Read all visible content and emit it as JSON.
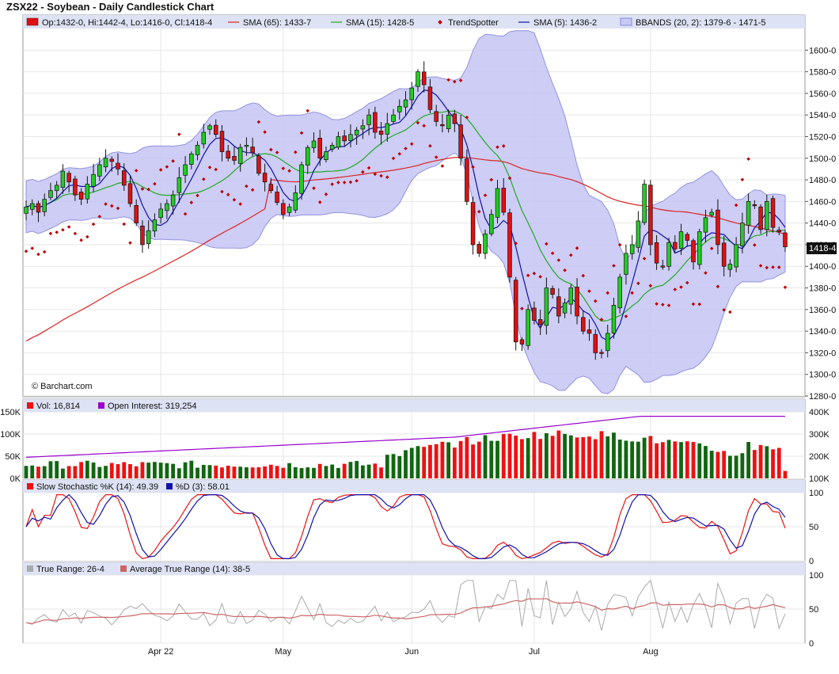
{
  "title": "ZSX22 - Soybean - Daily Candlestick Chart",
  "watermark": "© Barchart.com",
  "colors": {
    "up": "#22cc22",
    "down": "#dd1111",
    "sma65": "#dd2222",
    "sma15": "#22aa22",
    "sma5": "#1111aa",
    "trendspotter": "#bb0000",
    "bbands_fill": "#c8c8f4",
    "bbands_line": "#8888dd",
    "vol_up": "#116611",
    "vol_down": "#ee1111",
    "open_interest": "#9900cc",
    "stoch_k": "#ee1111",
    "stoch_d": "#1111aa",
    "true_range": "#aaaaaa",
    "atr": "#cc6666",
    "legend_bg": "#dde2f4"
  },
  "legends": {
    "price": {
      "ohlc": "Op:1432-0, Hi:1442-4, Lo:1416-0, Cl:1418-4",
      "sma65": "SMA (65): 1433-7",
      "sma15": "SMA (15): 1428-5",
      "trendspotter": "TrendSpotter",
      "sma5": "SMA (5): 1436-2",
      "bbands": "BBANDS (20, 2): 1379-6 - 1471-5"
    },
    "volume": {
      "vol": "Vol: 16,814",
      "oi": "Open Interest: 319,254"
    },
    "stoch": {
      "k": "Slow Stochastic %K (14): 49.39",
      "d": "%D (3): 58.01"
    },
    "tr": {
      "tr": "True Range: 26-4",
      "atr": "Average True Range (14): 38-5"
    }
  },
  "last_price_label": "1418-4",
  "chart_data": [
    {
      "type": "candlestick",
      "panel": "price",
      "x_labels": [
        {
          "index": 22,
          "label": "Apr 22"
        },
        {
          "index": 42,
          "label": "May"
        },
        {
          "index": 63,
          "label": "Jun"
        },
        {
          "index": 83,
          "label": "Jul"
        },
        {
          "index": 102,
          "label": "Aug"
        }
      ],
      "ylim": [
        1280,
        1620
      ],
      "y_ticks": [
        {
          "v": 1600,
          "label": "1600-0"
        },
        {
          "v": 1580,
          "label": "1580-0"
        },
        {
          "v": 1560,
          "label": "1560-0"
        },
        {
          "v": 1540,
          "label": "1540-0"
        },
        {
          "v": 1520,
          "label": "1520-0"
        },
        {
          "v": 1500,
          "label": "1500-0"
        },
        {
          "v": 1480,
          "label": "1480-0"
        },
        {
          "v": 1460,
          "label": "1460-0"
        },
        {
          "v": 1440,
          "label": "1440-0"
        },
        {
          "v": 1420,
          "label": "1420-0"
        },
        {
          "v": 1400,
          "label": "1400-0"
        },
        {
          "v": 1380,
          "label": "1380-0"
        },
        {
          "v": 1360,
          "label": "1360-0"
        },
        {
          "v": 1340,
          "label": "1340-0"
        },
        {
          "v": 1320,
          "label": "1320-0"
        },
        {
          "v": 1300,
          "label": "1300-0"
        },
        {
          "v": 1280,
          "label": "1280-0"
        }
      ],
      "close": [
        1455,
        1458,
        1450,
        1462,
        1470,
        1475,
        1488,
        1478,
        1466,
        1462,
        1476,
        1485,
        1494,
        1500,
        1497,
        1490,
        1475,
        1458,
        1440,
        1420,
        1433,
        1443,
        1453,
        1458,
        1466,
        1482,
        1494,
        1504,
        1512,
        1524,
        1530,
        1522,
        1506,
        1500,
        1498,
        1510,
        1512,
        1505,
        1486,
        1478,
        1470,
        1459,
        1448,
        1455,
        1468,
        1494,
        1510,
        1516,
        1500,
        1506,
        1512,
        1520,
        1516,
        1522,
        1526,
        1530,
        1540,
        1524,
        1522,
        1532,
        1540,
        1548,
        1554,
        1565,
        1580,
        1568,
        1545,
        1534,
        1530,
        1540,
        1532,
        1500,
        1460,
        1420,
        1412,
        1430,
        1448,
        1472,
        1450,
        1390,
        1330,
        1328,
        1360,
        1350,
        1346,
        1380,
        1374,
        1354,
        1366,
        1380,
        1354,
        1340,
        1338,
        1320,
        1320,
        1338,
        1364,
        1390,
        1412,
        1420,
        1442,
        1476,
        1420,
        1403,
        1400,
        1422,
        1416,
        1432,
        1424,
        1404,
        1432,
        1445,
        1450,
        1420,
        1400,
        1402,
        1420,
        1440,
        1460,
        1456,
        1434,
        1460,
        1436,
        1432,
        1418
      ],
      "volume_scale": [
        0,
        150000
      ],
      "oi_scale": [
        100000,
        400000
      ],
      "stoch_ylim": [
        0,
        100
      ],
      "tr_ylim": [
        0,
        100
      ]
    }
  ]
}
